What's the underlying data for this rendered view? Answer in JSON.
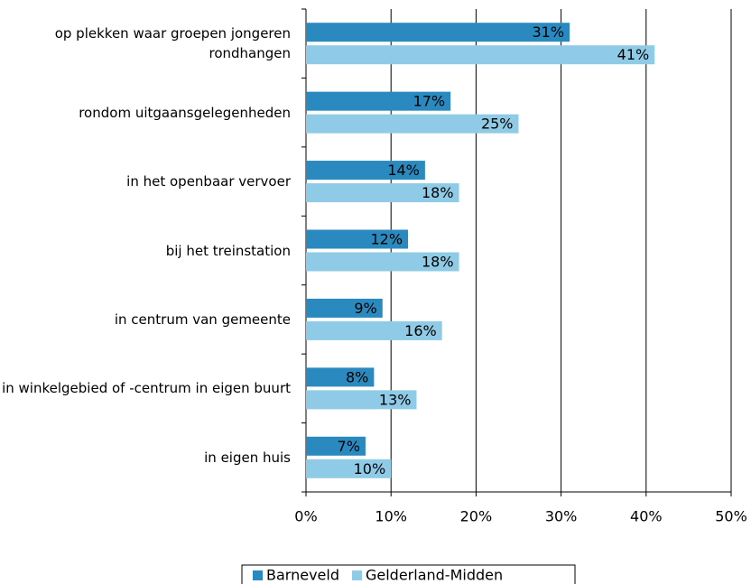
{
  "chart_data": {
    "type": "bar",
    "orientation": "horizontal",
    "categories": [
      "op plekken waar groepen jongeren rondhangen",
      "rondom uitgaansgelegenheden",
      "in het openbaar vervoer",
      "bij het treinstation",
      "in centrum van gemeente",
      "in winkelgebied of -centrum in eigen buurt",
      "in eigen huis"
    ],
    "series": [
      {
        "name": "Barneveld",
        "color": "#2a8abf",
        "values": [
          31,
          17,
          14,
          12,
          9,
          8,
          7
        ],
        "value_labels": [
          "31%",
          "17%",
          "14%",
          "12%",
          "9%",
          "8%",
          "7%"
        ]
      },
      {
        "name": "Gelderland-Midden",
        "color": "#8fcbe6",
        "values": [
          41,
          25,
          18,
          18,
          16,
          13,
          10
        ],
        "value_labels": [
          "41%",
          "25%",
          "18%",
          "18%",
          "16%",
          "13%",
          "10%"
        ]
      }
    ],
    "xlim": [
      0,
      50
    ],
    "xticks": [
      {
        "value": 0,
        "label": "0%"
      },
      {
        "value": 10,
        "label": "10%"
      },
      {
        "value": 20,
        "label": "20%"
      },
      {
        "value": 30,
        "label": "30%"
      },
      {
        "value": 40,
        "label": "40%"
      },
      {
        "value": 50,
        "label": "50%"
      }
    ],
    "grid": true,
    "legend": "bottom"
  }
}
